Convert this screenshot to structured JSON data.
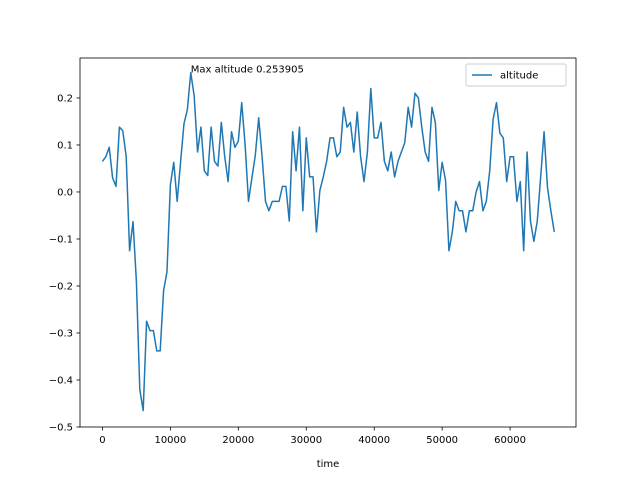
{
  "chart_data": {
    "type": "line",
    "xlabel": "time",
    "ylabel": "",
    "xlim": [
      -3300,
      69700
    ],
    "ylim": [
      -0.5,
      0.285
    ],
    "xticks": [
      0,
      10000,
      20000,
      30000,
      40000,
      50000,
      60000
    ],
    "xtick_labels": [
      "0",
      "10000",
      "20000",
      "30000",
      "40000",
      "50000",
      "60000"
    ],
    "yticks": [
      -0.5,
      -0.4,
      -0.3,
      -0.2,
      -0.1,
      0.0,
      0.1,
      0.2
    ],
    "ytick_labels": [
      "−0.5",
      "−0.4",
      "−0.3",
      "−0.2",
      "−0.1",
      "0.0",
      "0.1",
      "0.2"
    ],
    "grid": false,
    "legend_position": "top-right",
    "annotation": {
      "text": "Max altitude 0.253905",
      "x": 13000,
      "y": 0.253905
    },
    "series": [
      {
        "name": "altitude",
        "color": "#1f77b4",
        "x": [
          0,
          500,
          1000,
          1500,
          2000,
          2500,
          3000,
          3500,
          4000,
          4500,
          5000,
          5500,
          6000,
          6500,
          7000,
          7500,
          8000,
          8500,
          9000,
          9500,
          10000,
          10500,
          11000,
          11500,
          12000,
          12500,
          13000,
          13500,
          14000,
          14500,
          15000,
          15500,
          16000,
          16500,
          17000,
          17500,
          18000,
          18500,
          19000,
          19500,
          20000,
          20500,
          21000,
          21500,
          22000,
          22500,
          23000,
          23500,
          24000,
          24500,
          25000,
          25500,
          26000,
          26500,
          27000,
          27500,
          28000,
          28500,
          29000,
          29500,
          30000,
          30500,
          31000,
          31500,
          32000,
          32500,
          33000,
          33500,
          34000,
          34500,
          35000,
          35500,
          36000,
          36500,
          37000,
          37500,
          38000,
          38500,
          39000,
          39500,
          40000,
          40500,
          41000,
          41500,
          42000,
          42500,
          43000,
          43500,
          44000,
          44500,
          45000,
          45500,
          46000,
          46500,
          47000,
          47500,
          48000,
          48500,
          49000,
          49500,
          50000,
          50500,
          51000,
          51500,
          52000,
          52500,
          53000,
          53500,
          54000,
          54500,
          55000,
          55500,
          56000,
          56500,
          57000,
          57500,
          58000,
          58500,
          59000,
          59500,
          60000,
          60500,
          61000,
          61500,
          62000,
          62500,
          63000,
          63500,
          64000,
          64500,
          65000,
          65500,
          66000,
          66500
        ],
        "values": [
          0.065,
          0.075,
          0.095,
          0.03,
          0.012,
          0.138,
          0.13,
          0.075,
          -0.125,
          -0.063,
          -0.19,
          -0.42,
          -0.465,
          -0.275,
          -0.295,
          -0.295,
          -0.338,
          -0.338,
          -0.21,
          -0.17,
          0.015,
          0.063,
          -0.02,
          0.063,
          0.145,
          0.175,
          0.2539,
          0.205,
          0.085,
          0.138,
          0.045,
          0.035,
          0.138,
          0.065,
          0.055,
          0.148,
          0.075,
          0.022,
          0.128,
          0.095,
          0.108,
          0.19,
          0.1,
          -0.02,
          0.03,
          0.078,
          0.158,
          0.075,
          -0.02,
          -0.04,
          -0.02,
          -0.02,
          -0.02,
          0.012,
          0.012,
          -0.062,
          0.128,
          0.045,
          0.138,
          -0.04,
          0.115,
          0.032,
          0.032,
          -0.085,
          0.003,
          0.032,
          0.065,
          0.115,
          0.115,
          0.075,
          0.085,
          0.18,
          0.138,
          0.148,
          0.085,
          0.17,
          0.075,
          0.022,
          0.085,
          0.22,
          0.115,
          0.115,
          0.148,
          0.065,
          0.045,
          0.085,
          0.032,
          0.065,
          0.085,
          0.105,
          0.18,
          0.138,
          0.21,
          0.2,
          0.138,
          0.085,
          0.065,
          0.18,
          0.148,
          0.003,
          0.063,
          0.025,
          -0.125,
          -0.085,
          -0.02,
          -0.04,
          -0.04,
          -0.085,
          -0.04,
          -0.04,
          0.0,
          0.022,
          -0.04,
          -0.02,
          0.045,
          0.155,
          0.19,
          0.125,
          0.115,
          0.022,
          0.075,
          0.075,
          -0.02,
          0.022,
          -0.125,
          0.085,
          -0.062,
          -0.105,
          -0.062,
          0.032,
          0.128,
          0.01,
          -0.04,
          -0.085
        ]
      }
    ]
  }
}
